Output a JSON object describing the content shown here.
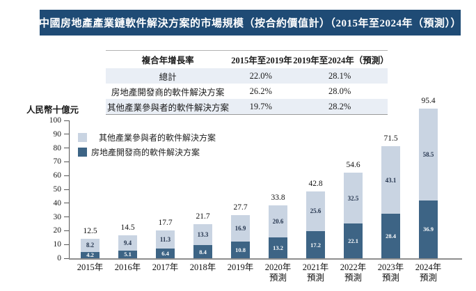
{
  "title": "中國房地產產業鏈軟件解決方案的市場規模（按合約價值計）（2015年至2024年（預測））",
  "cagr_table": {
    "header": [
      "複合年增長率",
      "2015年至2019年",
      "2019年至2024年（預測）"
    ],
    "rows": [
      {
        "label": "總計",
        "cagr_2015_2019": "22.0%",
        "cagr_2019_2024": "28.1%"
      },
      {
        "label": "房地產開發商的軟件解決方案",
        "cagr_2015_2019": "26.2%",
        "cagr_2019_2024": "28.0%"
      },
      {
        "label": "其他產業參與者的軟件解決方案",
        "cagr_2015_2019": "19.7%",
        "cagr_2019_2024": "28.2%"
      }
    ]
  },
  "chart_data": {
    "type": "bar",
    "stacked": true,
    "title": "中國房地產產業鏈軟件解決方案的市場規模（按合約價值計）（2015年至2024年（預測））",
    "unit_label": "人民幣十億元",
    "ylabel": "人民幣十億元",
    "xlabel": "",
    "ylim": [
      0,
      100
    ],
    "ytick_step": 10,
    "grid": false,
    "legend_position": "upper-left",
    "categories": [
      {
        "year": "2015年",
        "note": ""
      },
      {
        "year": "2016年",
        "note": ""
      },
      {
        "year": "2017年",
        "note": ""
      },
      {
        "year": "2018年",
        "note": ""
      },
      {
        "year": "2019年",
        "note": ""
      },
      {
        "year": "2020年",
        "note": "預測"
      },
      {
        "year": "2021年",
        "note": "預測"
      },
      {
        "year": "2022年",
        "note": "預測"
      },
      {
        "year": "2023年",
        "note": "預測"
      },
      {
        "year": "2024年",
        "note": "預測"
      }
    ],
    "series": [
      {
        "name": "其他產業參與者的軟件解決方案",
        "color": "#c9d4e2",
        "values": [
          8.2,
          9.4,
          11.3,
          13.3,
          16.9,
          20.6,
          25.6,
          32.5,
          43.1,
          58.5
        ]
      },
      {
        "name": "房地產開發商的軟件解決方案",
        "color": "#3d6485",
        "values": [
          4.2,
          5.1,
          6.4,
          8.4,
          10.8,
          13.2,
          17.2,
          22.1,
          28.4,
          36.9
        ]
      }
    ],
    "totals": [
      12.5,
      14.5,
      17.7,
      21.7,
      27.7,
      33.8,
      42.8,
      54.6,
      71.5,
      95.4
    ]
  },
  "colors": {
    "title_bar_bg": "#1f4b75",
    "title_text": "#ffffff",
    "bar_dark": "#3d6485",
    "bar_light": "#c9d4e2",
    "table_row_shade": "#e9eef5",
    "axis_line": "#8e8e8e",
    "dark_value_text": "#ffffff",
    "light_value_text": "#24344d"
  }
}
